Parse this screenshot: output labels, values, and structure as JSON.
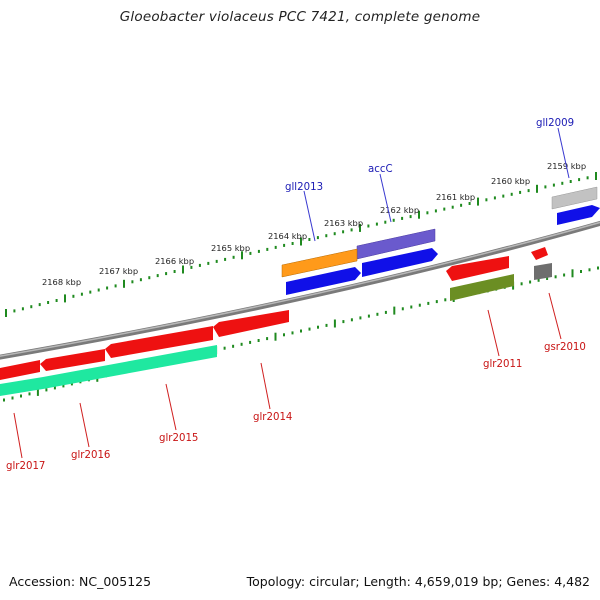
{
  "title": "Gloeobacter violaceus PCC 7421, complete genome",
  "accession": "Accession: NC_005125",
  "summary": "Topology: circular; Length: 4,659,019 bp; Genes: 4,482",
  "colors": {
    "plus_label": "#1a1ab4",
    "minus_label": "#c81414",
    "ticks": "#1f8a1f",
    "backbone": "#808080",
    "leader_plus": "#3a3ad0",
    "leader_minus": "#d02020"
  },
  "kbp_labels": [
    "2159 kbp",
    "2160 kbp",
    "2161 kbp",
    "2162 kbp",
    "2163 kbp",
    "2164 kbp",
    "2165 kbp",
    "2166 kbp",
    "2167 kbp",
    "2168 kbp"
  ],
  "genes": [
    {
      "name": "gll2009",
      "strand": "+",
      "color": "#b4b4b4"
    },
    {
      "name": "accC",
      "strand": "+",
      "color": "#6a5acd"
    },
    {
      "name": "gll2013",
      "strand": "+",
      "color": "#ff9a1a"
    },
    {
      "name": "glr2011",
      "strand": "-",
      "color": "#ee1111"
    },
    {
      "name": "gsr2010",
      "strand": "-",
      "color": "#ee1111"
    },
    {
      "name": "glr2014",
      "strand": "-",
      "color": "#ee1111"
    },
    {
      "name": "glr2015",
      "strand": "-",
      "color": "#ee1111"
    },
    {
      "name": "glr2016",
      "strand": "-",
      "color": "#ee1111"
    },
    {
      "name": "glr2017",
      "strand": "-",
      "color": "#ee1111"
    }
  ],
  "cds_colors": {
    "plus_cds": "#1010e8",
    "minus_rna_like": "#1fe8a0",
    "minus_olive": "#6b8e23",
    "minus_gray": "#6e6e6e"
  }
}
